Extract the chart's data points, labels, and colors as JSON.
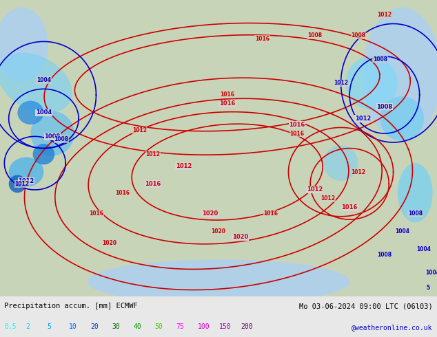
{
  "title_left": "Precipitation accum. [mm] ECMWF",
  "title_right": "Mo 03-06-2024 09:00 LTC (06l03)",
  "credit": "@weatheronline.co.uk",
  "legend_values": [
    "0.5",
    "2",
    "5",
    "10",
    "20",
    "30",
    "40",
    "50",
    "75",
    "100",
    "150",
    "200"
  ],
  "legend_colors": [
    "#00ffff",
    "#00ccff",
    "#0099ff",
    "#0066ff",
    "#0033cc",
    "#006600",
    "#009900",
    "#33cc00",
    "#ff00ff",
    "#cc00cc",
    "#990099",
    "#660066"
  ],
  "bg_color": "#e8e8e8",
  "map_bg": "#d4d4d4",
  "title_color": "#000000",
  "legend_label_color": "#000000",
  "credit_color": "#0000cc",
  "figsize": [
    6.34,
    4.9
  ],
  "dpi": 100
}
